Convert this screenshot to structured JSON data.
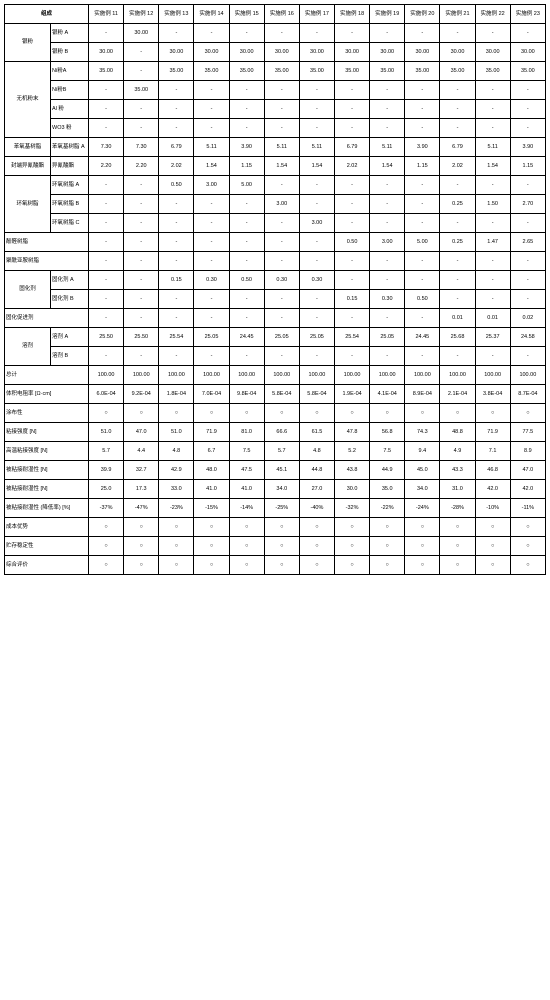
{
  "header": {
    "corner": "组成",
    "cols": [
      "实施例 11",
      "实施例 12",
      "实施例 13",
      "实施例 14",
      "实施例 15",
      "实施例 16",
      "实施例 17",
      "实施例 18",
      "实施例 19",
      "实施例 20",
      "实施例 21",
      "实施例 22",
      "实施例 23"
    ]
  },
  "groups": [
    {
      "name": "银粉",
      "items": [
        {
          "label": "银粉 A",
          "v": [
            "-",
            "30.00",
            "-",
            "-",
            "-",
            "-",
            "-",
            "-",
            "-",
            "-",
            "-",
            "-",
            "-"
          ]
        },
        {
          "label": "银粉 B",
          "v": [
            "30.00",
            "-",
            "30.00",
            "30.00",
            "30.00",
            "30.00",
            "30.00",
            "30.00",
            "30.00",
            "30.00",
            "30.00",
            "30.00",
            "30.00"
          ]
        }
      ]
    },
    {
      "name": "无机粉末",
      "items": [
        {
          "label": "Ni粉A",
          "v": [
            "35.00",
            "-",
            "35.00",
            "35.00",
            "35.00",
            "35.00",
            "35.00",
            "35.00",
            "35.00",
            "35.00",
            "35.00",
            "35.00",
            "35.00"
          ]
        },
        {
          "label": "Ni粉B",
          "v": [
            "-",
            "35.00",
            "-",
            "-",
            "-",
            "-",
            "-",
            "-",
            "-",
            "-",
            "-",
            "-",
            "-"
          ]
        },
        {
          "label": "Al 粉",
          "v": [
            "-",
            "-",
            "-",
            "-",
            "-",
            "-",
            "-",
            "-",
            "-",
            "-",
            "-",
            "-",
            "-"
          ]
        },
        {
          "label": "WO3 粉",
          "v": [
            "-",
            "-",
            "-",
            "-",
            "-",
            "-",
            "-",
            "-",
            "-",
            "-",
            "-",
            "-",
            "-"
          ]
        }
      ]
    },
    {
      "name": "苯氧基树脂",
      "items": [
        {
          "label": "苯氧基树脂 A",
          "v": [
            "7.30",
            "7.30",
            "6.79",
            "5.11",
            "3.90",
            "5.11",
            "5.11",
            "6.79",
            "5.11",
            "3.90",
            "6.79",
            "5.11",
            "3.90"
          ]
        }
      ]
    },
    {
      "name": "封端异氰酸酯",
      "items": [
        {
          "label": "异氰酸酯",
          "v": [
            "2.20",
            "2.20",
            "2.02",
            "1.54",
            "1.15",
            "1.54",
            "1.54",
            "2.02",
            "1.54",
            "1.15",
            "2.02",
            "1.54",
            "1.15"
          ]
        }
      ]
    },
    {
      "name": "环氧树脂",
      "items": [
        {
          "label": "环氧树脂 A",
          "v": [
            "-",
            "-",
            "0.50",
            "3.00",
            "5.00",
            "-",
            "-",
            "-",
            "-",
            "-",
            "-",
            "-",
            "-"
          ]
        },
        {
          "label": "环氧树脂 B",
          "v": [
            "-",
            "-",
            "-",
            "-",
            "-",
            "3.00",
            "-",
            "-",
            "-",
            "-",
            "0.25",
            "1.50",
            "2.70"
          ]
        },
        {
          "label": "环氧树脂 C",
          "v": [
            "-",
            "-",
            "-",
            "-",
            "-",
            "-",
            "3.00",
            "-",
            "-",
            "-",
            "-",
            "-",
            "-"
          ]
        }
      ]
    },
    {
      "name": "酚醛树脂",
      "span": true,
      "items": [
        {
          "label": "",
          "v": [
            "-",
            "-",
            "-",
            "-",
            "-",
            "-",
            "-",
            "0.50",
            "3.00",
            "5.00",
            "0.25",
            "1.47",
            "2.65"
          ]
        }
      ]
    },
    {
      "name": "聚酰亚胺树脂",
      "span": true,
      "items": [
        {
          "label": "",
          "v": [
            "-",
            "-",
            "-",
            "-",
            "-",
            "-",
            "-",
            "-",
            "-",
            "-",
            "-",
            "-",
            "-"
          ]
        }
      ]
    },
    {
      "name": "固化剂",
      "items": [
        {
          "label": "固化剂 A",
          "v": [
            "-",
            "-",
            "0.15",
            "0.30",
            "0.50",
            "0.30",
            "0.30",
            "-",
            "-",
            "-",
            "-",
            "-",
            "-"
          ]
        },
        {
          "label": "固化剂 B",
          "v": [
            "-",
            "-",
            "-",
            "-",
            "-",
            "-",
            "-",
            "0.15",
            "0.30",
            "0.50",
            "-",
            "-",
            "-"
          ]
        }
      ]
    },
    {
      "name": "固化促进剂",
      "span": true,
      "items": [
        {
          "label": "",
          "v": [
            "-",
            "-",
            "-",
            "-",
            "-",
            "-",
            "-",
            "-",
            "-",
            "-",
            "0.01",
            "0.01",
            "0.02"
          ]
        }
      ]
    },
    {
      "name": "溶剂",
      "items": [
        {
          "label": "溶剂 A",
          "v": [
            "25.50",
            "25.50",
            "25.54",
            "25.05",
            "24.45",
            "25.05",
            "25.05",
            "25.54",
            "25.05",
            "24.45",
            "25.68",
            "25.37",
            "24.58"
          ]
        },
        {
          "label": "溶剂 B",
          "v": [
            "-",
            "-",
            "-",
            "-",
            "-",
            "-",
            "-",
            "-",
            "-",
            "-",
            "-",
            "-",
            "-"
          ]
        }
      ]
    },
    {
      "name": "总计",
      "span": true,
      "items": [
        {
          "label": "",
          "v": [
            "100.00",
            "100.00",
            "100.00",
            "100.00",
            "100.00",
            "100.00",
            "100.00",
            "100.00",
            "100.00",
            "100.00",
            "100.00",
            "100.00",
            "100.00"
          ]
        }
      ]
    }
  ],
  "results": [
    {
      "label": "体积电阻率 [Ω·cm]",
      "v": [
        "6.0E-04",
        "9.2E-04",
        "1.8E-04",
        "7.0E-04",
        "9.8E-04",
        "5.8E-04",
        "5.8E-04",
        "1.9E-04",
        "4.1E-04",
        "8.9E-04",
        "2.1E-04",
        "3.8E-04",
        "8.7E-04"
      ]
    },
    {
      "label": "涂布性",
      "v": [
        "○",
        "○",
        "○",
        "○",
        "○",
        "○",
        "○",
        "○",
        "○",
        "○",
        "○",
        "○",
        "○"
      ]
    },
    {
      "label": "粘接强度 [N]",
      "v": [
        "51.0",
        "47.0",
        "51.0",
        "71.9",
        "81.0",
        "66.6",
        "61.5",
        "47.8",
        "56.8",
        "74.3",
        "48.8",
        "71.9",
        "77.5"
      ]
    },
    {
      "label": "高温粘接强度 [N]",
      "v": [
        "5.7",
        "4.4",
        "4.8",
        "6.7",
        "7.5",
        "5.7",
        "4.8",
        "5.2",
        "7.5",
        "9.4",
        "4.9",
        "7.1",
        "8.9"
      ]
    },
    {
      "label": "被粘接耐湿性 [N]",
      "v": [
        "39.9",
        "32.7",
        "42.9",
        "48.0",
        "47.5",
        "45.1",
        "44.8",
        "43.8",
        "44.9",
        "45.0",
        "43.3",
        "46.8",
        "47.0"
      ]
    },
    {
      "label": "被粘接耐湿性 [N]",
      "v": [
        "25.0",
        "17.3",
        "33.0",
        "41.0",
        "41.0",
        "34.0",
        "27.0",
        "30.0",
        "35.0",
        "34.0",
        "31.0",
        "42.0",
        "42.0"
      ]
    },
    {
      "label": "被粘接耐湿性 (降低率) [%]",
      "v": [
        "-37%",
        "-47%",
        "-23%",
        "-15%",
        "-14%",
        "-25%",
        "-40%",
        "-32%",
        "-22%",
        "-24%",
        "-28%",
        "-10%",
        "-11%"
      ]
    },
    {
      "label": "成本优势",
      "v": [
        "○",
        "○",
        "○",
        "○",
        "○",
        "○",
        "○",
        "○",
        "○",
        "○",
        "○",
        "○",
        "○"
      ]
    },
    {
      "label": "贮存稳定性",
      "v": [
        "○",
        "○",
        "○",
        "○",
        "○",
        "○",
        "○",
        "○",
        "○",
        "○",
        "○",
        "○",
        "○"
      ]
    },
    {
      "label": "综合评价",
      "v": [
        "○",
        "○",
        "○",
        "○",
        "○",
        "○",
        "○",
        "○",
        "○",
        "○",
        "○",
        "○",
        "○"
      ]
    }
  ]
}
